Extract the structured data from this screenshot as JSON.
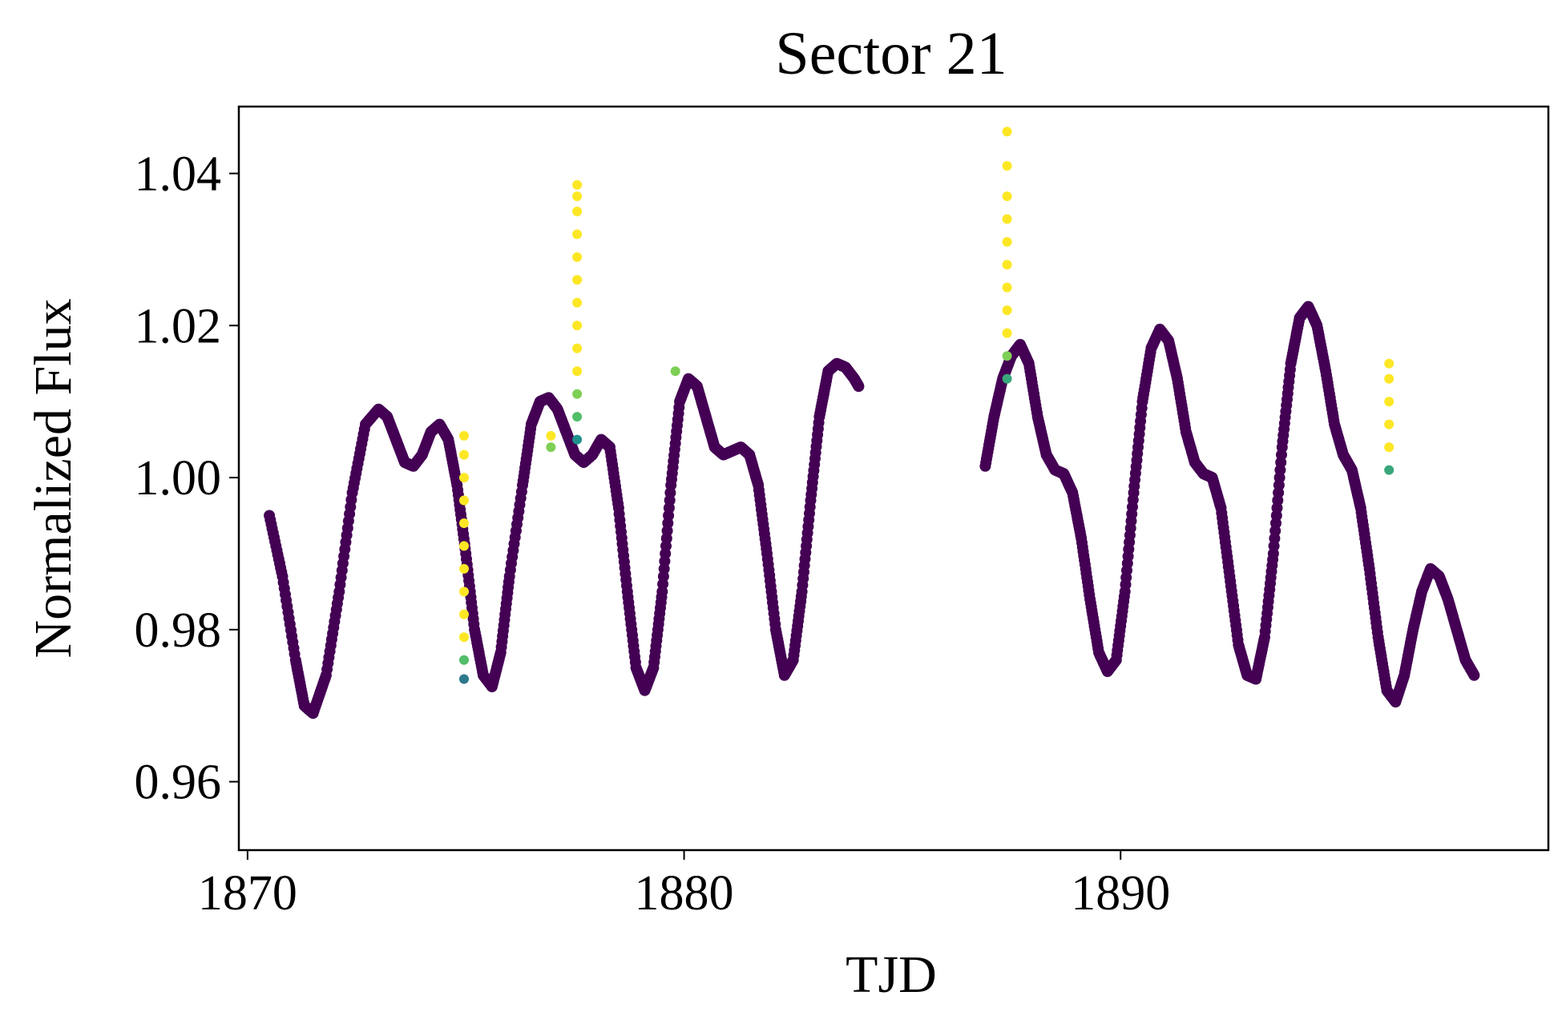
{
  "chart_data": {
    "type": "scatter",
    "title": "Sector 21",
    "xlabel": "TJD",
    "ylabel": "Normalized Flux",
    "xlim": [
      1869.8,
      1899.8
    ],
    "ylim": [
      0.951,
      1.0488
    ],
    "x_ticks": [
      1870,
      1880,
      1890
    ],
    "x_tick_labels": [
      "1870",
      "1880",
      "1890"
    ],
    "y_ticks": [
      0.96,
      0.98,
      1.0,
      1.02,
      1.04
    ],
    "y_tick_labels": [
      "0.96",
      "0.98",
      "1.00",
      "1.02",
      "1.04"
    ],
    "grid": false,
    "legend": "none",
    "colormap": "viridis",
    "colors": {
      "low": "#440154",
      "mid": "#3b528b",
      "mid2": "#21918c",
      "mid3": "#5ec962",
      "high": "#fde725"
    },
    "light_curve_segments": [
      {
        "x": [
          1870.5,
          1870.8,
          1871.1,
          1871.3,
          1871.5,
          1871.8,
          1872.1,
          1872.4,
          1872.7,
          1873.0,
          1873.2,
          1873.4,
          1873.6,
          1873.8,
          1874.0,
          1874.2,
          1874.4,
          1874.6,
          1874.8,
          1875.0,
          1875.2,
          1875.4,
          1875.6,
          1875.8,
          1876.0,
          1876.3,
          1876.5,
          1876.7,
          1876.9,
          1877.1,
          1877.3,
          1877.5,
          1877.7,
          1877.9,
          1878.1,
          1878.3,
          1878.5,
          1878.7,
          1878.9,
          1879.1,
          1879.3,
          1879.5,
          1879.7,
          1879.9,
          1880.1,
          1880.3,
          1880.5,
          1880.7,
          1880.9,
          1881.1,
          1881.3,
          1881.5,
          1881.7,
          1881.9,
          1882.1,
          1882.3,
          1882.5,
          1882.7,
          1882.9,
          1883.1,
          1883.3,
          1883.5,
          1883.7,
          1883.9,
          1884.0
        ],
        "y": [
          0.995,
          0.987,
          0.976,
          0.97,
          0.969,
          0.974,
          0.985,
          0.998,
          1.007,
          1.009,
          1.008,
          1.005,
          1.002,
          1.0015,
          1.003,
          1.006,
          1.007,
          1.005,
          0.999,
          0.99,
          0.98,
          0.974,
          0.9725,
          0.977,
          0.987,
          0.999,
          1.007,
          1.01,
          1.0105,
          1.009,
          1.006,
          1.003,
          1.002,
          1.003,
          1.005,
          1.004,
          0.996,
          0.985,
          0.975,
          0.972,
          0.975,
          0.985,
          0.999,
          1.01,
          1.013,
          1.012,
          1.008,
          1.004,
          1.003,
          1.0035,
          1.004,
          1.003,
          0.999,
          0.99,
          0.98,
          0.974,
          0.976,
          0.985,
          0.997,
          1.008,
          1.014,
          1.015,
          1.0145,
          1.013,
          1.012
        ]
      },
      {
        "x": [
          1886.9,
          1887.1,
          1887.3,
          1887.5,
          1887.7,
          1887.9,
          1888.1,
          1888.3,
          1888.5,
          1888.7,
          1888.9,
          1889.1,
          1889.3,
          1889.5,
          1889.7,
          1889.9,
          1890.1,
          1890.3,
          1890.5,
          1890.7,
          1890.9,
          1891.1,
          1891.3,
          1891.5,
          1891.7,
          1891.9,
          1892.1,
          1892.3,
          1892.5,
          1892.7,
          1892.9,
          1893.1,
          1893.3,
          1893.5,
          1893.7,
          1893.9,
          1894.1,
          1894.3,
          1894.5,
          1894.7,
          1894.9,
          1895.1,
          1895.3,
          1895.5,
          1895.7,
          1895.9,
          1896.1,
          1896.3,
          1896.5,
          1896.7,
          1896.9,
          1897.1,
          1897.3,
          1897.5,
          1897.7,
          1897.9,
          1898.1
        ],
        "y": [
          1.0015,
          1.008,
          1.013,
          1.016,
          1.0175,
          1.015,
          1.008,
          1.003,
          1.001,
          1.0005,
          0.998,
          0.992,
          0.984,
          0.977,
          0.9745,
          0.976,
          0.985,
          0.998,
          1.01,
          1.017,
          1.0195,
          1.018,
          1.013,
          1.006,
          1.002,
          1.0005,
          1.0,
          0.996,
          0.987,
          0.978,
          0.974,
          0.9735,
          0.979,
          0.99,
          1.004,
          1.015,
          1.021,
          1.0225,
          1.02,
          1.014,
          1.007,
          1.003,
          1.001,
          0.996,
          0.988,
          0.979,
          0.972,
          0.9705,
          0.974,
          0.98,
          0.985,
          0.988,
          0.987,
          0.984,
          0.98,
          0.976,
          0.974
        ]
      }
    ],
    "flare_points": [
      {
        "x": 1874.96,
        "y": [
          0.9735,
          0.976,
          0.979,
          0.982,
          0.985,
          0.988,
          0.991,
          0.994,
          0.997,
          1.0,
          1.003,
          1.0055
        ],
        "c": [
          0.4,
          0.7,
          1,
          1,
          1,
          1,
          1,
          1,
          1,
          1,
          1,
          1
        ]
      },
      {
        "x": 1877.55,
        "y": [
          1.005,
          1.008,
          1.011,
          1.014,
          1.017,
          1.02,
          1.023,
          1.026,
          1.029,
          1.032,
          1.035,
          1.037,
          1.0385
        ],
        "c": [
          0.5,
          0.7,
          0.8,
          1,
          1,
          1,
          1,
          1,
          1,
          1,
          1,
          1,
          1
        ]
      },
      {
        "x": 1887.4,
        "y": [
          1.013,
          1.016,
          1.019,
          1.022,
          1.025,
          1.028,
          1.031,
          1.034,
          1.037,
          1.041,
          1.0455
        ],
        "c": [
          0.6,
          0.8,
          1,
          1,
          1,
          1,
          1,
          1,
          1,
          1,
          1
        ]
      },
      {
        "x": 1896.15,
        "y": [
          1.001,
          1.004,
          1.007,
          1.01,
          1.013,
          1.015
        ],
        "c": [
          0.6,
          1,
          1,
          1,
          1,
          1
        ]
      },
      {
        "x": 1876.95,
        "y": [
          1.004,
          1.0055
        ],
        "c": [
          0.8,
          1
        ]
      },
      {
        "x": 1879.8,
        "y": [
          1.014
        ],
        "c": [
          0.8
        ]
      }
    ]
  }
}
